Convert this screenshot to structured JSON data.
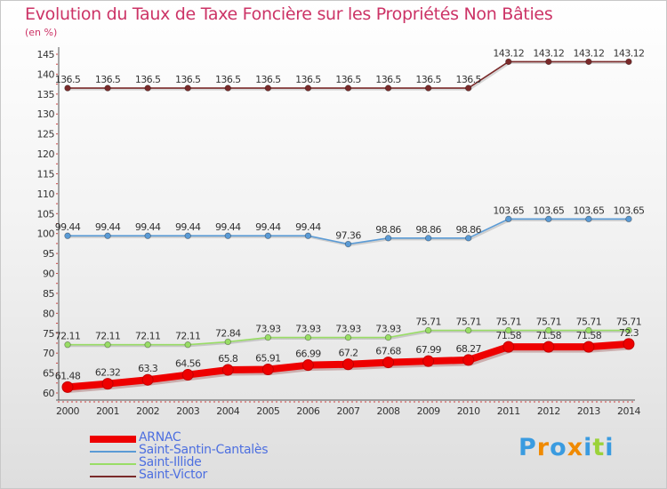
{
  "chart_data": {
    "type": "line",
    "title": "Evolution du Taux de Taxe Foncière sur les Propriétés Non Bâties",
    "unit": "(en %)",
    "x": [
      "2000",
      "2001",
      "2002",
      "2003",
      "2004",
      "2005",
      "2006",
      "2007",
      "2008",
      "2009",
      "2010",
      "2011",
      "2012",
      "2013",
      "2014"
    ],
    "ylim": [
      60,
      145
    ],
    "yticks": [
      60,
      65,
      70,
      75,
      80,
      85,
      90,
      95,
      100,
      105,
      110,
      115,
      120,
      125,
      130,
      135,
      140,
      145
    ],
    "grid": false,
    "legend_position": "bottom-left",
    "series": [
      {
        "name": "ARNAC",
        "color": "#ee0000",
        "values": [
          61.48,
          62.32,
          63.3,
          64.56,
          65.8,
          65.91,
          66.99,
          67.2,
          67.68,
          67.99,
          68.27,
          71.58,
          71.58,
          71.58,
          72.3
        ],
        "labels": [
          "61.48",
          "62.32",
          "63.3",
          "64.56",
          "65.8",
          "65.91",
          "66.99",
          "67.2",
          "67.68",
          "67.99",
          "68.27",
          "71.58",
          "71.58",
          "71.58",
          "72.3"
        ]
      },
      {
        "name": "Saint-Santin-Cantalès",
        "color": "#5b9bd5",
        "values": [
          99.44,
          99.44,
          99.44,
          99.44,
          99.44,
          99.44,
          99.44,
          97.36,
          98.86,
          98.86,
          98.86,
          103.65,
          103.65,
          103.65,
          103.65
        ],
        "labels": [
          "99.44",
          "99.44",
          "99.44",
          "99.44",
          "99.44",
          "99.44",
          "99.44",
          "97.36",
          "98.86",
          "98.86",
          "98.86",
          "103.65",
          "103.65",
          "103.65",
          "103.65"
        ]
      },
      {
        "name": "Saint-Illide",
        "color": "#99dd66",
        "values": [
          72.11,
          72.11,
          72.11,
          72.11,
          72.84,
          73.93,
          73.93,
          73.93,
          73.93,
          75.71,
          75.71,
          75.71,
          75.71,
          75.71,
          75.71
        ],
        "labels": [
          "72.11",
          "72.11",
          "72.11",
          "72.11",
          "72.84",
          "73.93",
          "73.93",
          "73.93",
          "73.93",
          "75.71",
          "75.71",
          "75.71",
          "75.71",
          "75.71",
          "75.71"
        ]
      },
      {
        "name": "Saint-Victor",
        "color": "#7a2a2a",
        "values": [
          136.5,
          136.5,
          136.5,
          136.5,
          136.5,
          136.5,
          136.5,
          136.5,
          136.5,
          136.5,
          136.5,
          143.12,
          143.12,
          143.12,
          143.12
        ],
        "labels": [
          "136.5",
          "136.5",
          "136.5",
          "136.5",
          "136.5",
          "136.5",
          "136.5",
          "136.5",
          "136.5",
          "136.5",
          "136.5",
          "143.12",
          "143.12",
          "143.12",
          "143.12"
        ]
      }
    ]
  },
  "brand": {
    "letters": [
      "P",
      "r",
      "o",
      "x",
      "i",
      "t",
      "i"
    ],
    "colors": [
      "#3a9be0",
      "#f08a00",
      "#3a9be0",
      "#f08a00",
      "#3a9be0",
      "#9bd23a",
      "#3a9be0"
    ]
  }
}
